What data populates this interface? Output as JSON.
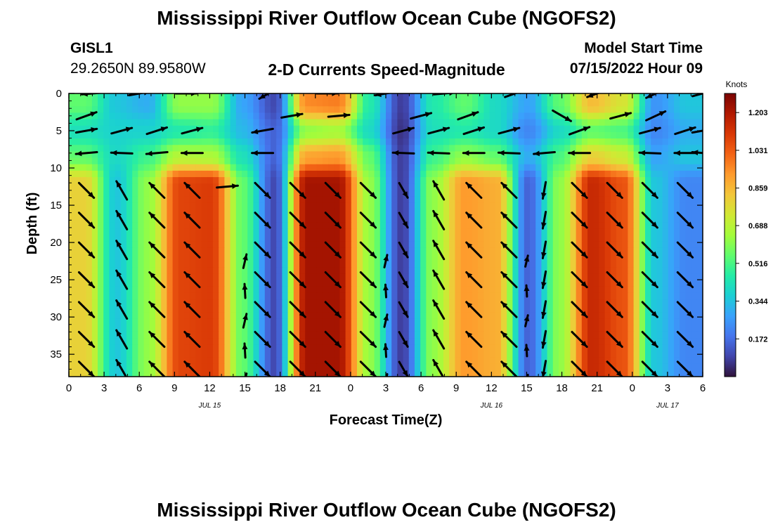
{
  "header": {
    "title": "Mississippi River Outflow Ocean Cube (NGOFS2)",
    "station_id": "GISL1",
    "station_coords": "29.2650N  89.9580W",
    "subtitle": "2-D Currents Speed-Magnitude",
    "model_start_label": "Model Start Time",
    "model_start_value": "07/15/2022 Hour 09"
  },
  "footer": {
    "title": "Mississippi River Outflow Ocean Cube (NGOFS2)"
  },
  "chart_data": {
    "type": "heatmap",
    "xlabel": "Forecast Time(Z)",
    "ylabel": "Depth (ft)",
    "x_range_hours": [
      0,
      54
    ],
    "y_range_ft": [
      0,
      38
    ],
    "y_inverted": true,
    "x_tick_labels": [
      "0",
      "3",
      "6",
      "9",
      "12",
      "15",
      "18",
      "21",
      "0",
      "3",
      "6",
      "9",
      "12",
      "15",
      "18",
      "21",
      "0",
      "3",
      "6"
    ],
    "y_ticks": [
      0,
      5,
      10,
      15,
      20,
      25,
      30,
      35
    ],
    "date_labels": [
      {
        "text": "JUL 15",
        "hour": 12
      },
      {
        "text": "JUL 16",
        "hour": 36
      },
      {
        "text": "JUL 17",
        "hour": 51
      }
    ],
    "colorbar": {
      "unit": "Knots",
      "range": [
        0.0,
        1.29
      ],
      "ticks": [
        "1.203",
        "1.031",
        "0.859",
        "0.688",
        "0.516",
        "0.344",
        "0.172"
      ],
      "tick_values": [
        1.203,
        1.031,
        0.859,
        0.688,
        0.516,
        0.344,
        0.172
      ],
      "colormap": [
        "#30123b",
        "#4145ab",
        "#4675ed",
        "#39a2fc",
        "#1bcfd4",
        "#24eca6",
        "#61fc6c",
        "#a4fc3b",
        "#d1e834",
        "#f3c63a",
        "#fe9b2d",
        "#f36315",
        "#d93806",
        "#b11901",
        "#7a0402"
      ]
    },
    "speed_field": {
      "layers": [
        {
          "depth_range_ft": [
            0,
            3
          ],
          "speeds_knots": [
            0.55,
            0.35,
            0.3,
            0.62,
            0.62,
            0.28,
            0.1,
            0.95,
            0.97,
            0.45,
            0.08,
            0.45,
            0.55,
            0.4,
            0.28,
            0.55,
            0.85,
            0.75,
            0.25,
            0.35
          ]
        },
        {
          "depth_range_ft": [
            3,
            7
          ],
          "speeds_knots": [
            0.42,
            0.38,
            0.38,
            0.45,
            0.48,
            0.32,
            0.15,
            0.62,
            0.65,
            0.4,
            0.06,
            0.42,
            0.45,
            0.4,
            0.22,
            0.4,
            0.55,
            0.52,
            0.22,
            0.3
          ]
        },
        {
          "depth_range_ft": [
            7,
            10
          ],
          "speeds_knots": [
            0.55,
            0.4,
            0.5,
            0.68,
            0.66,
            0.42,
            0.15,
            0.9,
            0.92,
            0.55,
            0.08,
            0.5,
            0.62,
            0.55,
            0.3,
            0.52,
            0.8,
            0.72,
            0.28,
            0.35
          ]
        },
        {
          "depth_range_ft": [
            10,
            38
          ],
          "speeds_knots": [
            0.8,
            0.35,
            0.62,
            1.08,
            1.1,
            0.55,
            0.1,
            1.22,
            1.22,
            0.62,
            0.08,
            0.62,
            0.92,
            0.88,
            0.15,
            0.62,
            1.15,
            1.05,
            0.35,
            0.22
          ]
        }
      ]
    },
    "vectors": {
      "layers": [
        {
          "depth_ft": 0,
          "times_h": [
            2,
            6,
            10,
            17,
            22,
            27,
            32,
            38,
            45,
            50,
            54
          ],
          "angles_deg": [
            185,
            10,
            0,
            210,
            0,
            190,
            5,
            20,
            200,
            205,
            15
          ]
        },
        {
          "depth_ft": 3,
          "times_h": [
            1.5,
            19,
            23,
            30,
            34,
            42,
            47,
            50
          ],
          "angles_deg": [
            20,
            10,
            5,
            15,
            20,
            -30,
            15,
            25
          ]
        },
        {
          "depth_ft": 5,
          "times_h": [
            1.5,
            4.5,
            7.5,
            10.5,
            16.5,
            28.5,
            31.5,
            34.5,
            37.5,
            43.5,
            49.5,
            52.5,
            54
          ],
          "angles_deg": [
            10,
            15,
            18,
            15,
            190,
            15,
            15,
            18,
            15,
            20,
            15,
            18,
            10
          ]
        },
        {
          "depth_ft": 8,
          "times_h": [
            1.5,
            4.5,
            7.5,
            10.5,
            16.5,
            28.5,
            31.5,
            34.5,
            37.5,
            40.5,
            43.5,
            49.5,
            52.5,
            54
          ],
          "angles_deg": [
            185,
            178,
            185,
            180,
            180,
            178,
            178,
            180,
            178,
            185,
            180,
            178,
            180,
            175
          ]
        },
        {
          "depth_ft": 12.5,
          "times_h": [
            13.5
          ],
          "angles_deg": [
            5
          ]
        }
      ],
      "grid_times_h": [
        1.5,
        4.5,
        7.5,
        10.5,
        16.5,
        19.5,
        22.5,
        25.5,
        28.5,
        31.5,
        34.5,
        37.5,
        40.5,
        43.5,
        46.5,
        49.5,
        52.5,
        55
      ],
      "grid_depths_ft": [
        13,
        17,
        21,
        25,
        29,
        33,
        37
      ],
      "grid_angles_deg": [
        -45,
        120,
        135,
        135,
        -45,
        -45,
        -45,
        -45,
        -60,
        120,
        135,
        135,
        -100,
        -45,
        -45,
        -45,
        -45,
        -45
      ],
      "near_slack_times_h": [
        15,
        27,
        39
      ]
    }
  }
}
